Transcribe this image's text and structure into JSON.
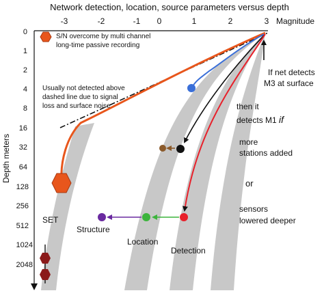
{
  "title": "Network detection, location, source parameters versus depth",
  "x_axis": {
    "label": "Magnitude",
    "ticks": [
      "-3",
      "-2",
      "-1",
      "0",
      "1",
      "2",
      "3"
    ]
  },
  "y_axis": {
    "label": "Depth   meters",
    "ticks": [
      "0",
      "1",
      "2",
      "4",
      "8",
      "16",
      "32",
      "64",
      "128",
      "256",
      "512",
      "1024",
      "2048"
    ]
  },
  "legend": {
    "line1": "S/N overcome by multi channel",
    "line2": "long-time passive recording",
    "color": "#e8561c"
  },
  "notes": {
    "not_detected_1": "Usually not detected above",
    "not_detected_2": "dashed line due to signal",
    "not_detected_3": "loss and surface noise",
    "if_net_1": "If net detects",
    "if_net_2": "M3 at surface",
    "then_1": "then it",
    "then_2": "detects M1 ",
    "then_if": "if",
    "more_1": "more",
    "more_2": "stations added",
    "or": "or",
    "sensors_1": "sensors",
    "sensors_2": "lowered deeper"
  },
  "bands": {
    "set": "SET",
    "structure": "Structure",
    "location": "Location",
    "detection": "Detection"
  },
  "colors": {
    "band": "#c8c8c8",
    "orange": "#e8561c",
    "blue": "#3a6fd8",
    "red": "#e8202a",
    "green": "#3cb43c",
    "purple": "#6a2aa0",
    "brown": "#8b5a2b",
    "dark_red": "#8b1a1a"
  }
}
